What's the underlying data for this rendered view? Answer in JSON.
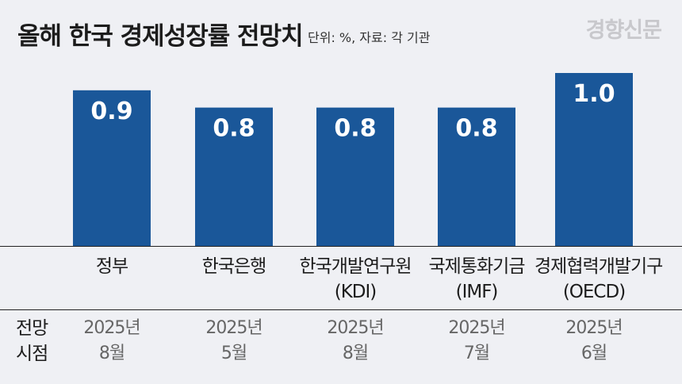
{
  "header": {
    "title": "올해 한국 경제성장률 전망치",
    "unit": "단위: %, 자료: 각 기관",
    "logo": "경향신문"
  },
  "colors": {
    "bar": "#1a5799",
    "bar_label": "#ffffff",
    "background": "#eff0f4"
  },
  "forecast": {
    "row_head_1": "전망",
    "row_head_2": "시점",
    "dates": [
      {
        "year": "2025년",
        "month": "8월"
      },
      {
        "year": "2025년",
        "month": "5월"
      },
      {
        "year": "2025년",
        "month": "8월"
      },
      {
        "year": "2025년",
        "month": "7월"
      },
      {
        "year": "2025년",
        "month": "6월"
      }
    ]
  },
  "chart_data": {
    "type": "bar",
    "title": "올해 한국 경제성장률 전망치",
    "categories": [
      {
        "line1": "정부",
        "line2": ""
      },
      {
        "line1": "한국은행",
        "line2": ""
      },
      {
        "line1": "한국개발연구원",
        "line2": "(KDI)"
      },
      {
        "line1": "국제통화기금",
        "line2": "(IMF)"
      },
      {
        "line1": "경제협력개발기구",
        "line2": "(OECD)"
      }
    ],
    "values": [
      0.9,
      0.8,
      0.8,
      0.8,
      1.0
    ],
    "value_labels": [
      "0.9",
      "0.8",
      "0.8",
      "0.8",
      "1.0"
    ],
    "grid": false,
    "legend": "none"
  }
}
